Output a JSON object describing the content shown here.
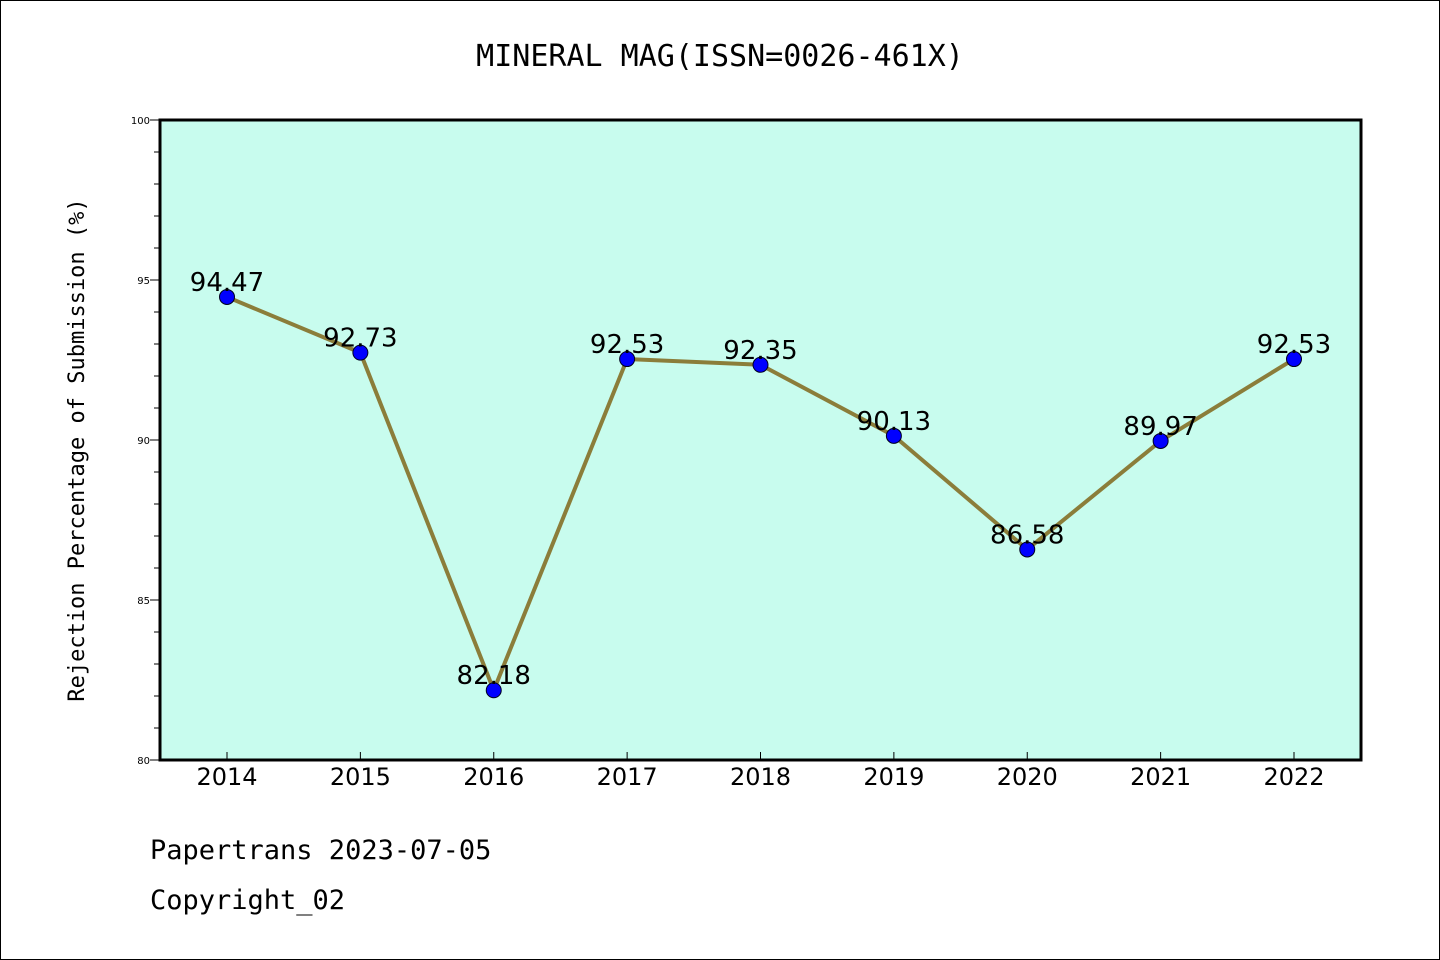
{
  "chart_data": {
    "type": "line",
    "title": "MINERAL MAG(ISSN=0026-461X)",
    "xlabel": "",
    "ylabel": "Rejection Percentage of Submission (%)",
    "categories": [
      "2014",
      "2015",
      "2016",
      "2017",
      "2018",
      "2019",
      "2020",
      "2021",
      "2022"
    ],
    "series": [
      {
        "name": "Rejection Percentage",
        "values": [
          94.47,
          92.73,
          82.18,
          92.53,
          92.35,
          90.13,
          86.58,
          89.97,
          92.53
        ],
        "labels": [
          "94.47",
          "92.73",
          "82.18",
          "92.53",
          "92.35",
          "90.13",
          "86.58",
          "89.97",
          "92.53"
        ]
      }
    ],
    "ylim": [
      80,
      100
    ],
    "yticks": [
      "80",
      "85",
      "90",
      "95",
      "100"
    ],
    "grid": false,
    "colors": {
      "background": "#c8fcee",
      "line": "#8b7d3a",
      "marker": "#0000ff"
    }
  },
  "footer": {
    "line1": "Papertrans 2023-07-05",
    "line2": "Copyright_02"
  }
}
